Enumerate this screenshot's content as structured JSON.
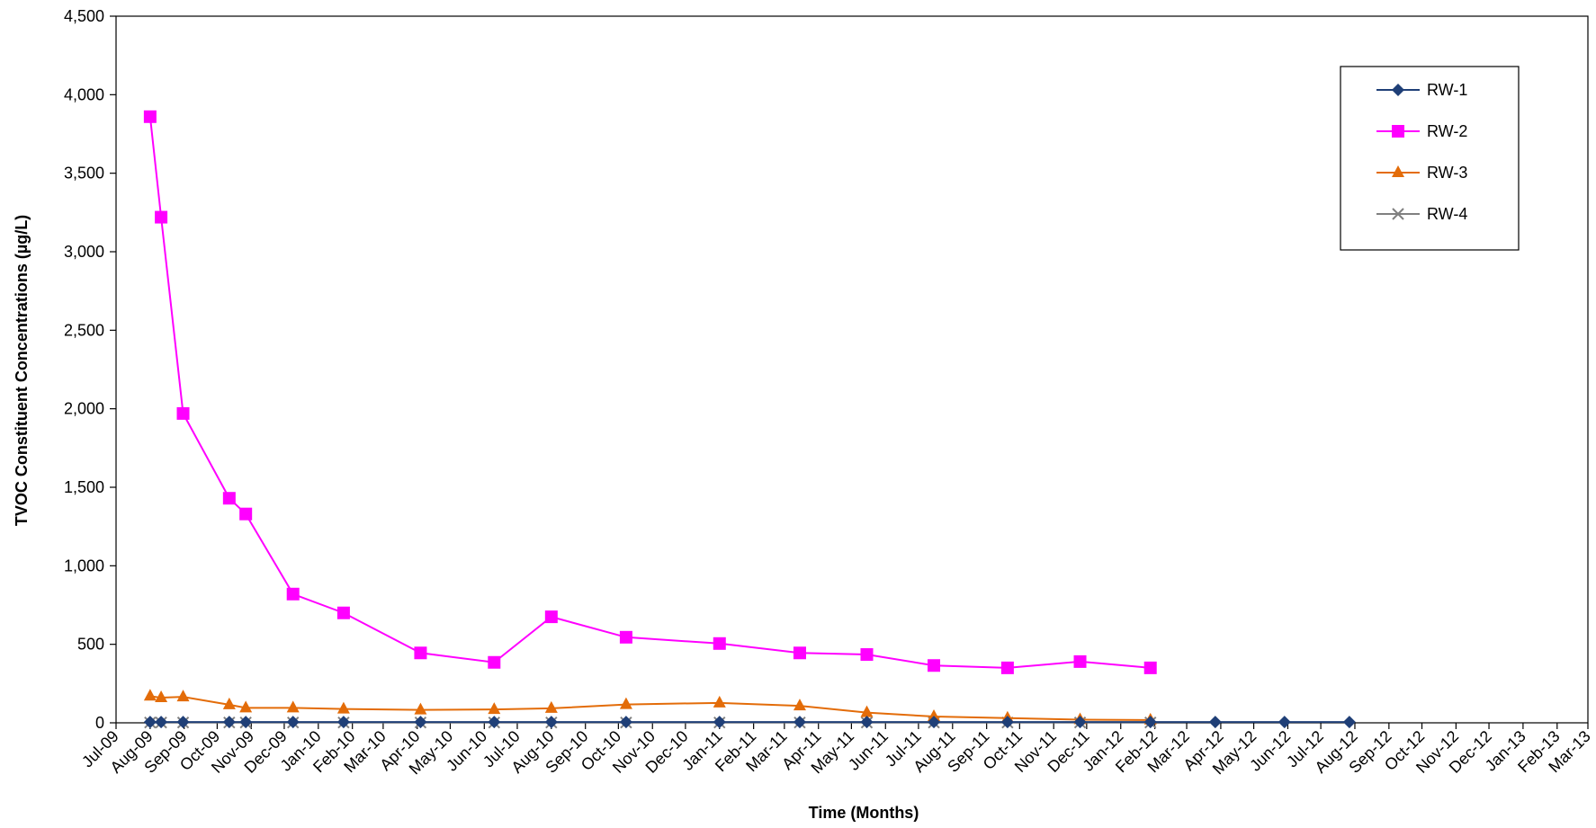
{
  "chart_data": {
    "type": "line",
    "title": "",
    "xlabel": "Time (Months)",
    "ylabel": "TVOC Constituent Concentrations (µg/L)",
    "ylim": [
      0,
      4500
    ],
    "yticks": [
      "0",
      "500",
      "1,000",
      "1,500",
      "2,000",
      "2,500",
      "3,000",
      "3,500",
      "4,000",
      "4,500"
    ],
    "ytick_values": [
      0,
      500,
      1000,
      1500,
      2000,
      2500,
      3000,
      3500,
      4000,
      4500
    ],
    "xlim": [
      "2009-07-01",
      "2013-03-01"
    ],
    "xticks": [
      "Jul-09",
      "Aug-09",
      "Sep-09",
      "Oct-09",
      "Nov-09",
      "Dec-09",
      "Jan-10",
      "Feb-10",
      "Mar-10",
      "Apr-10",
      "May-10",
      "Jun-10",
      "Jul-10",
      "Aug-10",
      "Sep-10",
      "Oct-10",
      "Nov-10",
      "Dec-10",
      "Jan-11",
      "Feb-11",
      "Mar-11",
      "Apr-11",
      "May-11",
      "Jun-11",
      "Jul-11",
      "Aug-11",
      "Sep-11",
      "Oct-11",
      "Nov-11",
      "Dec-11",
      "Jan-12",
      "Feb-12",
      "Mar-12",
      "Apr-12",
      "May-12",
      "Jun-12",
      "Jul-12",
      "Aug-12",
      "Sep-12",
      "Oct-12",
      "Nov-12",
      "Dec-12",
      "Jan-13",
      "Feb-13",
      "Mar-13"
    ],
    "x": [
      "2009-08-01",
      "2009-08-11",
      "2009-08-31",
      "2009-10-12",
      "2009-10-27",
      "2009-12-09",
      "2010-01-24",
      "2010-04-04",
      "2010-06-10",
      "2010-08-01",
      "2010-10-08",
      "2011-01-01",
      "2011-03-15",
      "2011-05-15",
      "2011-07-15",
      "2011-09-20",
      "2011-11-25",
      "2012-01-28",
      "2012-03-27",
      "2012-05-29",
      "2012-07-27"
    ],
    "series": [
      {
        "name": "RW-1",
        "color": "#1F3F77",
        "marker": "diamond",
        "values": [
          5,
          5,
          5,
          5,
          5,
          5,
          5,
          5,
          5,
          5,
          5,
          5,
          5,
          5,
          5,
          5,
          5,
          5,
          5,
          5,
          5
        ]
      },
      {
        "name": "RW-2",
        "color": "#FF00FF",
        "marker": "square",
        "values": [
          3860,
          3220,
          1970,
          1430,
          1330,
          820,
          700,
          445,
          385,
          675,
          545,
          505,
          445,
          435,
          365,
          350,
          390,
          350,
          null,
          null,
          null
        ]
      },
      {
        "name": "RW-3",
        "color": "#E36C09",
        "marker": "triangle",
        "values": [
          170,
          160,
          165,
          115,
          95,
          95,
          88,
          82,
          85,
          92,
          117,
          127,
          108,
          65,
          40,
          30,
          20,
          18,
          null,
          null,
          null
        ]
      },
      {
        "name": "RW-4",
        "color": "#808080",
        "marker": "x",
        "values": [
          2,
          2,
          2,
          2,
          2,
          2,
          2,
          2,
          2,
          2,
          2,
          2,
          2,
          2,
          2,
          2,
          2,
          2,
          null,
          null,
          null
        ]
      }
    ],
    "grid": false,
    "legend_position": "top-right"
  }
}
